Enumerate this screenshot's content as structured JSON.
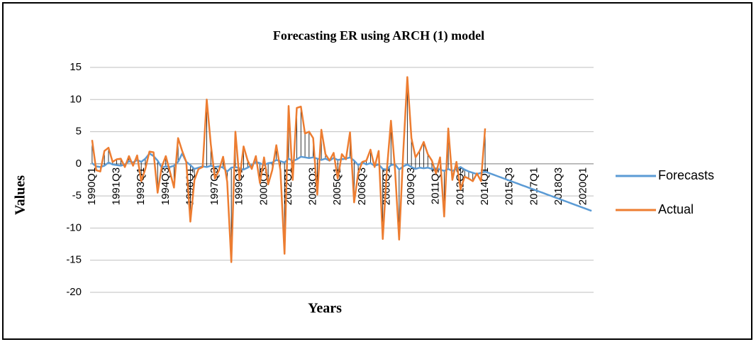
{
  "chart_data": {
    "type": "line",
    "title": "Forecasting  ER using ARCH (1) model",
    "x_label": "Years",
    "y_label": "Values",
    "categories": [
      "1990Q1",
      null,
      null,
      null,
      null,
      null,
      "1991Q3",
      null,
      null,
      null,
      null,
      null,
      "1993Q1",
      null,
      null,
      null,
      null,
      null,
      "1994Q3",
      null,
      null,
      null,
      null,
      null,
      "1996Q1",
      null,
      null,
      null,
      null,
      null,
      "1997Q3",
      null,
      null,
      null,
      null,
      null,
      "1999Q1",
      null,
      null,
      null,
      null,
      null,
      "2000Q3",
      null,
      null,
      null,
      null,
      null,
      "2002Q1",
      null,
      null,
      null,
      null,
      null,
      "2003Q3",
      null,
      null,
      null,
      null,
      null,
      "2005Q1",
      null,
      null,
      null,
      null,
      null,
      "2006Q3",
      null,
      null,
      null,
      null,
      null,
      "2008Q1",
      null,
      null,
      null,
      null,
      null,
      "2009Q3",
      null,
      null,
      null,
      null,
      null,
      "2011Q1",
      null,
      null,
      null,
      null,
      null,
      "2012Q3",
      null,
      null,
      null,
      null,
      null,
      "2014Q1",
      null,
      null,
      null,
      null,
      null,
      "2015Q3",
      null,
      null,
      null,
      null,
      null,
      "2017Q1",
      null,
      null,
      null,
      null,
      null,
      "2018Q3",
      null,
      null,
      null,
      null,
      null,
      "2020Q1",
      null,
      null
    ],
    "series": [
      {
        "name": "Forecasts",
        "color": "#5b9bd5",
        "values": [
          0.1,
          -0.4,
          -0.5,
          -0.3,
          0.2,
          -0.1,
          -0.2,
          -0.3,
          -0.1,
          0.4,
          0.2,
          0.6,
          0.3,
          0.8,
          1.6,
          1.2,
          0.5,
          -0.6,
          -0.4,
          -0.5,
          -0.3,
          0.3,
          1.6,
          0.3,
          -0.2,
          -0.8,
          -0.6,
          -0.4,
          -0.5,
          -0.3,
          -0.5,
          -0.4,
          -0.6,
          -1.2,
          -0.6,
          -0.5,
          -0.7,
          -0.9,
          -0.6,
          -0.2,
          0.3,
          0.1,
          -0.2,
          0.1,
          0.2,
          0.6,
          0.4,
          0.2,
          0.8,
          0.4,
          0.7,
          1.1,
          1,
          0.9,
          1,
          0.8,
          0.6,
          0.8,
          0.5,
          0.9,
          0.6,
          0.7,
          0.8,
          1,
          0.5,
          -0.2,
          0.2,
          -0.1,
          0.1,
          -0.3,
          -0.1,
          -0.8,
          -0.9,
          -0.2,
          -0.1,
          -0.9,
          -0.4,
          -0.1,
          -0.5,
          -0.8,
          -0.6,
          -0.7,
          -0.6,
          -0.8,
          -0.7,
          -0.9,
          -1.1,
          -0.8,
          -1.1,
          -0.8,
          -0.5,
          -0.9,
          -1.2,
          -1.4,
          -1.6,
          -1.4,
          -1.2,
          -1.45,
          -1.68,
          -1.92,
          -2.15,
          -2.39,
          -2.62,
          -2.86,
          -3.09,
          -3.33,
          -3.56,
          -3.8,
          -4.03,
          -4.27,
          -4.5,
          -4.74,
          -4.97,
          -5.21,
          -5.44,
          -5.68,
          -5.91,
          -6.15,
          -6.38,
          -6.62,
          -6.85,
          -7.09,
          -7.32
        ]
      },
      {
        "name": "Actual",
        "color": "#ed7d31",
        "values": [
          3.7,
          -1,
          -1.2,
          2,
          2.5,
          0.3,
          0.7,
          0.8,
          -0.5,
          1.2,
          -0.3,
          1.3,
          -2.7,
          -0.8,
          1.9,
          1.8,
          -4.5,
          -0.5,
          1.2,
          -1.2,
          -3.7,
          4,
          2,
          0.3,
          -9,
          -2.5,
          -0.8,
          -0.5,
          10,
          3,
          -2.3,
          -1,
          1.1,
          -2.8,
          -15.3,
          5,
          -2.5,
          2.7,
          0.5,
          -0.8,
          1.2,
          -3,
          1,
          -3.2,
          -1,
          2.9,
          -1,
          -14,
          9,
          -2.5,
          8.7,
          8.9,
          4.7,
          5,
          4,
          -4.8,
          5.3,
          1.5,
          0.5,
          1.7,
          -2.3,
          1.5,
          0.7,
          4.9,
          -6,
          -1.4,
          0.3,
          0.5,
          2.2,
          -0.5,
          2,
          -11.7,
          -1,
          6.7,
          -1,
          -11.8,
          1.8,
          13.5,
          4,
          1,
          2,
          3.4,
          1.5,
          0.5,
          -1.5,
          1,
          -8.2,
          5.5,
          -2.5,
          0.3,
          -4,
          -2,
          -2.3,
          -2.7,
          -1.5,
          -2.7,
          5.5,
          null,
          null,
          null,
          null,
          null,
          null,
          null,
          null,
          null,
          null,
          null,
          null,
          null,
          null,
          null,
          null,
          null,
          null,
          null,
          null,
          null,
          null,
          null,
          null,
          null,
          null
        ]
      }
    ],
    "ylim": [
      -20,
      15
    ],
    "yticks": [
      -20,
      -15,
      -10,
      -5,
      0,
      5,
      10,
      15
    ],
    "grid": true,
    "legend": "right",
    "drop_lines": true
  }
}
